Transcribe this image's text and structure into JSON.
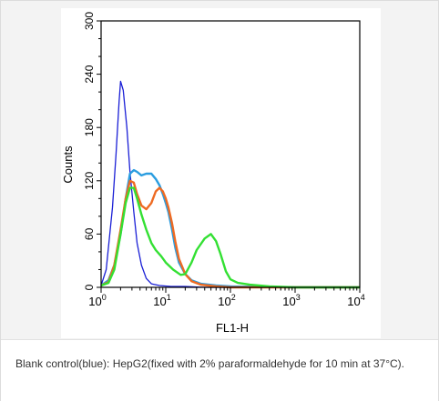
{
  "chart_data": {
    "type": "line",
    "xlabel": "FL1-H",
    "ylabel": "Counts",
    "x_scale": "log",
    "xlim": [
      1,
      10000
    ],
    "ylim": [
      0,
      300
    ],
    "x_ticks": [
      {
        "base": "10",
        "exp": "0"
      },
      {
        "base": "10",
        "exp": "1"
      },
      {
        "base": "10",
        "exp": "2"
      },
      {
        "base": "10",
        "exp": "3"
      },
      {
        "base": "10",
        "exp": "4"
      }
    ],
    "y_ticks": [
      "0",
      "60",
      "120",
      "180",
      "240",
      "300"
    ],
    "grid": false,
    "legend": "none",
    "series": [
      {
        "color": "#1a1fd6",
        "x": [
          1,
          1.2,
          1.5,
          1.7,
          1.9,
          2.0,
          2.2,
          2.5,
          2.8,
          3.2,
          3.6,
          4.2,
          5,
          6,
          8,
          12,
          20,
          40,
          100,
          1000,
          10000
        ],
        "y": [
          2,
          20,
          90,
          150,
          210,
          232,
          222,
          180,
          130,
          85,
          50,
          25,
          10,
          4,
          2,
          1,
          1,
          0,
          0,
          0,
          0
        ]
      },
      {
        "color": "#2a9de0",
        "x": [
          1,
          1.3,
          1.6,
          2.0,
          2.4,
          2.8,
          3.2,
          3.6,
          4.2,
          5.0,
          6.0,
          7.0,
          8.0,
          9.0,
          10,
          11,
          12.5,
          14,
          16,
          20,
          25,
          35,
          60,
          100,
          1000,
          10000
        ],
        "y": [
          2,
          8,
          25,
          60,
          100,
          128,
          132,
          130,
          126,
          128,
          128,
          122,
          115,
          105,
          95,
          85,
          65,
          45,
          28,
          15,
          8,
          4,
          2,
          1,
          0,
          0
        ]
      },
      {
        "color": "#ee6a22",
        "x": [
          1,
          1.3,
          1.6,
          2.0,
          2.4,
          2.8,
          3.2,
          3.6,
          4.2,
          5.0,
          6.0,
          7.0,
          8.0,
          9.0,
          10,
          11,
          12.5,
          14,
          16,
          20,
          25,
          35,
          60,
          100,
          1000,
          10000
        ],
        "y": [
          2,
          6,
          25,
          65,
          100,
          120,
          118,
          105,
          92,
          88,
          95,
          108,
          112,
          108,
          100,
          90,
          72,
          52,
          32,
          15,
          7,
          3,
          1,
          0,
          0,
          0
        ]
      },
      {
        "color": "#33e033",
        "x": [
          1,
          1.3,
          1.6,
          2.0,
          2.4,
          2.8,
          3.2,
          3.6,
          4.2,
          5.0,
          6.0,
          7.0,
          8.5,
          10,
          13,
          17,
          20,
          25,
          30,
          40,
          50,
          60,
          70,
          85,
          100,
          130,
          200,
          400,
          1000,
          10000
        ],
        "y": [
          2,
          5,
          20,
          60,
          95,
          112,
          112,
          100,
          82,
          65,
          50,
          42,
          35,
          28,
          20,
          14,
          15,
          28,
          42,
          55,
          60,
          52,
          38,
          18,
          9,
          5,
          3,
          1,
          0,
          0
        ]
      }
    ]
  },
  "caption": "Blank control(blue): HepG2(fixed with 2% paraformaldehyde for 10 min at 37°C)."
}
